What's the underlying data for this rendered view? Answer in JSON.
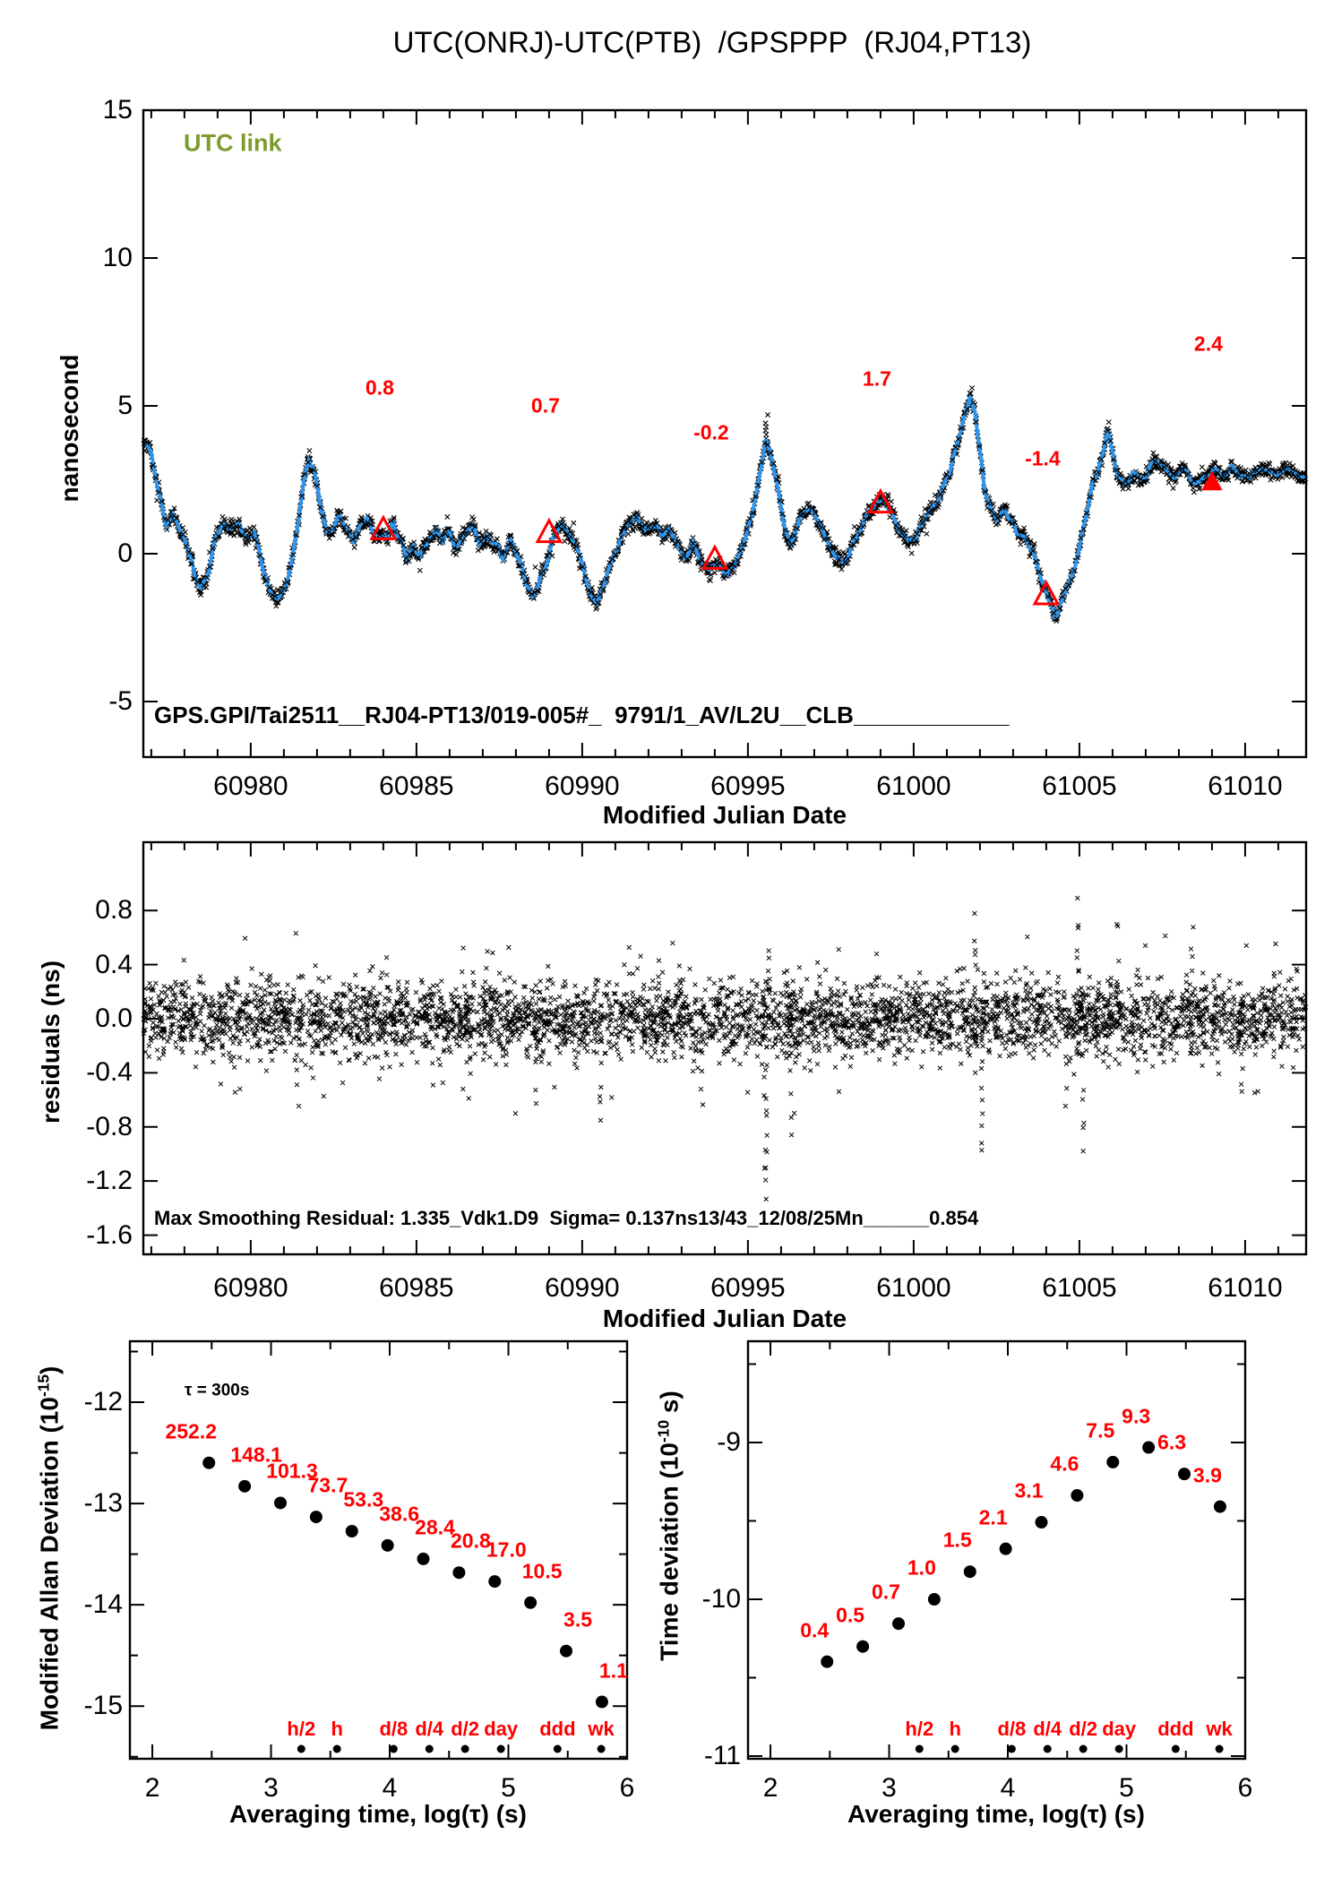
{
  "title": "UTC(ONRJ)-UTC(PTB)  /GPSPPP  (RJ04,PT13)",
  "seed": 7,
  "colors": {
    "red": "#ff0000",
    "blue": "#2e95ec",
    "green": "#7d9c2f",
    "black": "#000000"
  },
  "chart_data": {
    "utc_link": {
      "type": "line",
      "corner_label": "UTC link",
      "ylabel": "nanosecond",
      "xlabel": "Modified Julian Date",
      "footer_label": "GPS.GPI/Tai2511__RJ04-PT13/019-005#_  9791/1_AV/L2U__CLB____________",
      "xlim": [
        60976.76,
        61011.84
      ],
      "ylim": [
        -6.88,
        15.0
      ],
      "xticks": [
        60980,
        60985,
        60990,
        60995,
        61000,
        61005,
        61010
      ],
      "xtick_labels": [
        "60980",
        "60985",
        "60990",
        "60995",
        "61000",
        "61005",
        "61010"
      ],
      "xminor_step": 1,
      "yticks": [
        15,
        10,
        5,
        0,
        -5
      ],
      "ytick_labels": [
        "15",
        "10",
        "5",
        "0",
        "-5"
      ],
      "noise_sigma": 0.13,
      "wiggle_amp": 0.09,
      "marker_step": 0.015,
      "spikes": [
        [
          60995.56,
          4.65,
          5
        ],
        [
          61001.72,
          5.55,
          3
        ],
        [
          61005.9,
          4.4,
          3
        ],
        [
          60981.77,
          3.45,
          3
        ]
      ],
      "calibration": {
        "mjd": [
          60984,
          60989,
          60994,
          60999,
          61004,
          61009
        ],
        "values": [
          0.8,
          0.7,
          -0.2,
          1.7,
          -1.4,
          2.4
        ],
        "labels": [
          "0.8",
          "0.7",
          "-0.2",
          "1.7",
          "-1.4",
          "2.4"
        ],
        "label_ns": [
          5.6,
          5.0,
          4.1,
          5.9,
          3.2,
          7.1
        ],
        "filled": [
          false,
          false,
          false,
          false,
          false,
          true
        ]
      },
      "breakpoints": [
        [
          60976.78,
          3.75
        ],
        [
          60977.0,
          3.35
        ],
        [
          60977.2,
          2.1
        ],
        [
          60977.45,
          1.0
        ],
        [
          60977.65,
          1.35
        ],
        [
          60977.85,
          0.9
        ],
        [
          60978.1,
          0.3
        ],
        [
          60978.3,
          -0.7
        ],
        [
          60978.5,
          -1.05
        ],
        [
          60978.7,
          -0.6
        ],
        [
          60978.95,
          0.55
        ],
        [
          60979.15,
          1.15
        ],
        [
          60979.4,
          0.85
        ],
        [
          60979.65,
          1.0
        ],
        [
          60979.85,
          0.5
        ],
        [
          60980.1,
          0.7
        ],
        [
          60980.3,
          -0.3
        ],
        [
          60980.55,
          -1.2
        ],
        [
          60980.8,
          -1.55
        ],
        [
          60981.0,
          -1.3
        ],
        [
          60981.2,
          -0.45
        ],
        [
          60981.45,
          1.25
        ],
        [
          60981.6,
          2.55
        ],
        [
          60981.75,
          3.2
        ],
        [
          60981.9,
          2.85
        ],
        [
          60982.1,
          1.6
        ],
        [
          60982.3,
          0.7
        ],
        [
          60982.5,
          0.9
        ],
        [
          60982.7,
          1.3
        ],
        [
          60982.9,
          0.8
        ],
        [
          60983.1,
          0.4
        ],
        [
          60983.3,
          0.9
        ],
        [
          60983.5,
          1.2
        ],
        [
          60983.7,
          0.5
        ],
        [
          60983.9,
          0.85
        ],
        [
          60984.1,
          0.6
        ],
        [
          60984.3,
          1.1
        ],
        [
          60984.5,
          0.4
        ],
        [
          60984.7,
          -0.1
        ],
        [
          60984.9,
          0.3
        ],
        [
          60985.1,
          -0.2
        ],
        [
          60985.35,
          0.3
        ],
        [
          60985.6,
          0.8
        ],
        [
          60985.8,
          0.3
        ],
        [
          60986.0,
          0.7
        ],
        [
          60986.2,
          0.2
        ],
        [
          60986.45,
          0.6
        ],
        [
          60986.7,
          1.0
        ],
        [
          60986.9,
          0.4
        ],
        [
          60987.1,
          0.8
        ],
        [
          60987.35,
          0.3
        ],
        [
          60987.6,
          -0.2
        ],
        [
          60987.85,
          0.4
        ],
        [
          60988.1,
          -0.1
        ],
        [
          60988.3,
          -0.9
        ],
        [
          60988.5,
          -1.45
        ],
        [
          60988.7,
          -1.0
        ],
        [
          60988.95,
          -0.2
        ],
        [
          60989.15,
          0.6
        ],
        [
          60989.35,
          1.1
        ],
        [
          60989.6,
          0.7
        ],
        [
          60989.85,
          0.2
        ],
        [
          60990.05,
          -0.6
        ],
        [
          60990.25,
          -1.35
        ],
        [
          60990.45,
          -1.6
        ],
        [
          60990.65,
          -1.0
        ],
        [
          60990.9,
          -0.2
        ],
        [
          60991.15,
          0.5
        ],
        [
          60991.4,
          0.9
        ],
        [
          60991.65,
          1.2
        ],
        [
          60991.9,
          0.7
        ],
        [
          60992.15,
          1.05
        ],
        [
          60992.4,
          0.5
        ],
        [
          60992.6,
          0.9
        ],
        [
          60992.85,
          0.4
        ],
        [
          60993.1,
          -0.1
        ],
        [
          60993.35,
          0.35
        ],
        [
          60993.6,
          -0.3
        ],
        [
          60993.85,
          -0.5
        ],
        [
          60994.1,
          -0.25
        ],
        [
          60994.35,
          -0.65
        ],
        [
          60994.6,
          -0.35
        ],
        [
          60994.85,
          0.3
        ],
        [
          60995.1,
          1.3
        ],
        [
          60995.35,
          2.8
        ],
        [
          60995.55,
          3.9
        ],
        [
          60995.7,
          3.2
        ],
        [
          60995.9,
          2.2
        ],
        [
          60996.1,
          1.0
        ],
        [
          60996.3,
          0.35
        ],
        [
          60996.5,
          0.8
        ],
        [
          60996.7,
          1.4
        ],
        [
          60996.9,
          1.6
        ],
        [
          60997.1,
          1.1
        ],
        [
          60997.35,
          0.5
        ],
        [
          60997.6,
          0.1
        ],
        [
          60997.85,
          -0.4
        ],
        [
          60998.1,
          0.1
        ],
        [
          60998.35,
          0.8
        ],
        [
          60998.6,
          1.3
        ],
        [
          60998.85,
          1.7
        ],
        [
          60999.1,
          1.8
        ],
        [
          60999.35,
          1.3
        ],
        [
          60999.6,
          0.7
        ],
        [
          60999.85,
          0.25
        ],
        [
          61000.1,
          0.7
        ],
        [
          61000.35,
          1.2
        ],
        [
          61000.6,
          1.55
        ],
        [
          61000.85,
          2.1
        ],
        [
          61001.1,
          2.9
        ],
        [
          61001.35,
          3.8
        ],
        [
          61001.55,
          4.7
        ],
        [
          61001.7,
          5.35
        ],
        [
          61001.85,
          4.9
        ],
        [
          61002.0,
          3.6
        ],
        [
          61002.15,
          2.2
        ],
        [
          61002.3,
          1.5
        ],
        [
          61002.5,
          1.1
        ],
        [
          61002.7,
          1.5
        ],
        [
          61002.9,
          1.2
        ],
        [
          61003.1,
          0.9
        ],
        [
          61003.35,
          0.6
        ],
        [
          61003.6,
          0.1
        ],
        [
          61003.85,
          -0.9
        ],
        [
          61004.05,
          -1.5
        ],
        [
          61004.25,
          -2.05
        ],
        [
          61004.45,
          -1.7
        ],
        [
          61004.65,
          -1.1
        ],
        [
          61004.9,
          -0.2
        ],
        [
          61005.15,
          1.1
        ],
        [
          61005.4,
          2.3
        ],
        [
          61005.6,
          3.0
        ],
        [
          61005.85,
          4.1
        ],
        [
          61006.0,
          3.4
        ],
        [
          61006.15,
          2.6
        ],
        [
          61006.35,
          2.3
        ],
        [
          61006.6,
          2.9
        ],
        [
          61006.85,
          2.5
        ],
        [
          61007.1,
          2.9
        ],
        [
          61007.35,
          3.2
        ],
        [
          61007.6,
          2.8
        ],
        [
          61007.85,
          2.5
        ],
        [
          61008.1,
          2.9
        ],
        [
          61008.35,
          2.6
        ],
        [
          61008.6,
          2.4
        ],
        [
          61008.85,
          2.6
        ],
        [
          61009.1,
          2.8
        ],
        [
          61009.35,
          2.6
        ],
        [
          61009.6,
          2.9
        ],
        [
          61009.85,
          2.7
        ],
        [
          61010.1,
          2.6
        ],
        [
          61010.35,
          2.8
        ],
        [
          61010.6,
          2.65
        ],
        [
          61010.85,
          2.75
        ],
        [
          61011.1,
          2.7
        ],
        [
          61011.35,
          2.72
        ]
      ]
    },
    "residuals": {
      "type": "scatter",
      "ylabel": "residuals (ns)",
      "xlabel": "Modified Julian Date",
      "annotation": "Max Smoothing Residual: 1.335_Vdk1.D9  Sigma= 0.137ns13/43_12/08/25Mn______0.854",
      "xlim": [
        60976.76,
        61011.84
      ],
      "ylim": [
        -1.742,
        1.305
      ],
      "xticks": [
        60980,
        60985,
        60990,
        60995,
        61000,
        61005,
        61010
      ],
      "xtick_labels": [
        "60980",
        "60985",
        "60990",
        "60995",
        "61000",
        "61005",
        "61010"
      ],
      "xminor_step": 1,
      "yticks": [
        0.8,
        0.4,
        0.0,
        -0.4,
        -0.8,
        -1.2,
        -1.6
      ],
      "ytick_labels": [
        "0.8",
        "0.4",
        "0.0",
        "-0.4",
        "-0.8",
        "-1.2",
        "-1.6"
      ],
      "sigma": 0.137,
      "n_points": 4200,
      "tail_fraction": 0.055,
      "tail_sigma": 0.26,
      "spikes": [
        [
          60979.5,
          -0.5,
          4
        ],
        [
          60981.4,
          -0.62,
          5
        ],
        [
          60984.1,
          0.48,
          4
        ],
        [
          60986.6,
          -0.55,
          4
        ],
        [
          60988.6,
          -0.6,
          5
        ],
        [
          60990.55,
          -0.78,
          7
        ],
        [
          60992.3,
          0.45,
          4
        ],
        [
          60993.6,
          -0.62,
          5
        ],
        [
          60995.53,
          -1.35,
          16
        ],
        [
          60995.6,
          0.55,
          6
        ],
        [
          60996.3,
          -0.8,
          6
        ],
        [
          60998.9,
          0.5,
          4
        ],
        [
          61001.85,
          0.75,
          8
        ],
        [
          61002.05,
          -1.02,
          9
        ],
        [
          61003.4,
          0.5,
          4
        ],
        [
          61004.6,
          -0.6,
          5
        ],
        [
          61004.95,
          0.85,
          8
        ],
        [
          61005.1,
          -0.95,
          8
        ],
        [
          61006.15,
          0.72,
          5
        ],
        [
          61008.4,
          0.66,
          6
        ],
        [
          61009.9,
          -0.6,
          5
        ],
        [
          61010.9,
          0.45,
          4
        ]
      ]
    },
    "mdev": {
      "type": "scatter",
      "ylabel_prefix": "Modified Allan Deviation (10",
      "ylabel_sup": "-15",
      "ylabel_suffix": ")",
      "xlabel": "Averaging time, log(τ) (s)",
      "tau_note": "τ = 300s",
      "xlim": [
        1.811,
        6.0
      ],
      "ylim": [
        -15.52,
        -11.398
      ],
      "xticks": [
        2,
        3,
        4,
        5,
        6
      ],
      "xtick_labels": [
        "2",
        "3",
        "4",
        "5",
        "6"
      ],
      "yticks": [
        -12,
        -13,
        -14,
        -15
      ],
      "ytick_labels": [
        "-12",
        "-13",
        "-14",
        "-15"
      ],
      "unit_exp": -15,
      "log_tau": [
        2.477,
        2.778,
        3.079,
        3.38,
        3.681,
        3.982,
        4.283,
        4.584,
        4.885,
        5.186,
        5.487,
        5.788
      ],
      "values": [
        252.2,
        148.1,
        101.3,
        73.7,
        53.3,
        38.6,
        28.4,
        20.8,
        17.0,
        10.5,
        3.5,
        1.1
      ],
      "value_labels": [
        "252.2",
        "148.1",
        "101.3",
        "73.7",
        "53.3",
        "38.6",
        "28.4",
        "20.8",
        "17.0",
        "10.5",
        "3.5",
        "1.1"
      ],
      "time_marks": {
        "labels": [
          "h/2",
          "h",
          "d/8",
          "d/4",
          "d/2",
          "day",
          "ddd",
          "wk"
        ],
        "log_tau": [
          3.255,
          3.556,
          4.033,
          4.334,
          4.635,
          4.937,
          5.414,
          5.782
        ]
      }
    },
    "tdev": {
      "type": "scatter",
      "ylabel_prefix": "Time deviation (10",
      "ylabel_sup": "-10",
      "ylabel_suffix": " s)",
      "xlabel": "Averaging time, log(τ) (s)",
      "xlim": [
        1.811,
        6.0
      ],
      "ylim": [
        -11.017,
        -8.354
      ],
      "xticks": [
        2,
        3,
        4,
        5,
        6
      ],
      "xtick_labels": [
        "2",
        "3",
        "4",
        "5",
        "6"
      ],
      "yticks": [
        -9,
        -10,
        -11
      ],
      "ytick_labels": [
        "-9",
        "-10",
        "-11"
      ],
      "unit_exp": -10,
      "log_tau": [
        2.477,
        2.778,
        3.079,
        3.38,
        3.681,
        3.982,
        4.283,
        4.584,
        4.885,
        5.186,
        5.487,
        5.788
      ],
      "values": [
        0.4,
        0.5,
        0.7,
        1.0,
        1.5,
        2.1,
        3.1,
        4.6,
        7.5,
        9.3,
        6.3,
        3.9
      ],
      "value_labels": [
        "0.4",
        "0.5",
        "0.7",
        "1.0",
        "1.5",
        "2.1",
        "3.1",
        "4.6",
        "7.5",
        "9.3",
        "6.3",
        "3.9"
      ],
      "time_marks": {
        "labels": [
          "h/2",
          "h",
          "d/8",
          "d/4",
          "d/2",
          "day",
          "ddd",
          "wk"
        ],
        "log_tau": [
          3.255,
          3.556,
          4.033,
          4.334,
          4.635,
          4.937,
          5.414,
          5.782
        ]
      }
    }
  }
}
